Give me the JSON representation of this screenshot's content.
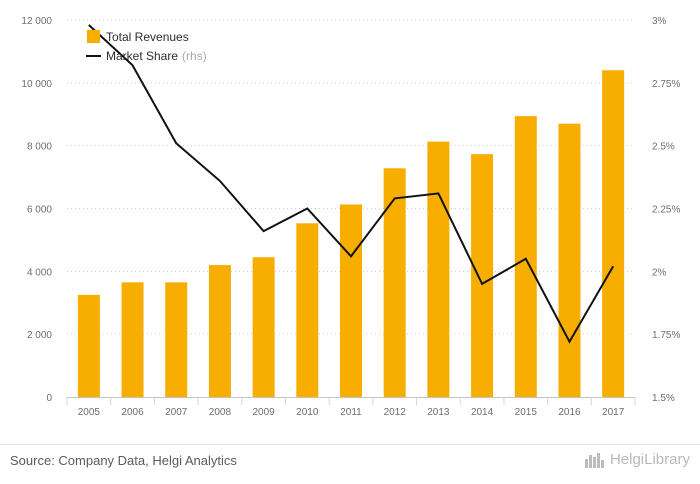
{
  "chart_data": {
    "type": "bar",
    "categories": [
      "2005",
      "2006",
      "2007",
      "2008",
      "2009",
      "2010",
      "2011",
      "2012",
      "2013",
      "2014",
      "2015",
      "2016",
      "2017"
    ],
    "series": [
      {
        "name": "Total Revenues",
        "type": "bar",
        "axis": "left",
        "values": [
          3250,
          3650,
          3650,
          4200,
          4450,
          5530,
          6130,
          7280,
          8130,
          7730,
          8940,
          8700,
          10400
        ]
      },
      {
        "name": "Market Share",
        "type": "line",
        "axis": "right",
        "values": [
          2.98,
          2.82,
          2.51,
          2.36,
          2.16,
          2.25,
          2.06,
          2.29,
          2.31,
          1.95,
          2.05,
          1.72,
          2.02
        ]
      }
    ],
    "legend": {
      "bar_label": "Total Revenues",
      "line_label": "Market Share",
      "line_suffix": "(rhs)",
      "position": "top-left"
    },
    "y_left": {
      "ticks": [
        "0",
        "2 000",
        "4 000",
        "6 000",
        "8 000",
        "10 000",
        "12 000"
      ],
      "ylim": [
        0,
        12000
      ]
    },
    "y_right": {
      "ticks": [
        "1.5%",
        "1.75%",
        "2%",
        "2.25%",
        "2.5%",
        "2.75%",
        "3%"
      ],
      "ylim": [
        1.5,
        3.0
      ]
    },
    "colors": {
      "bar": "#f7ae00",
      "line": "#111111",
      "grid": "#cccccc"
    },
    "grid": "dotted horizontal"
  },
  "footer": {
    "source": "Source: Company Data, Helgi Analytics",
    "logo_text": "HelgiLibrary"
  }
}
